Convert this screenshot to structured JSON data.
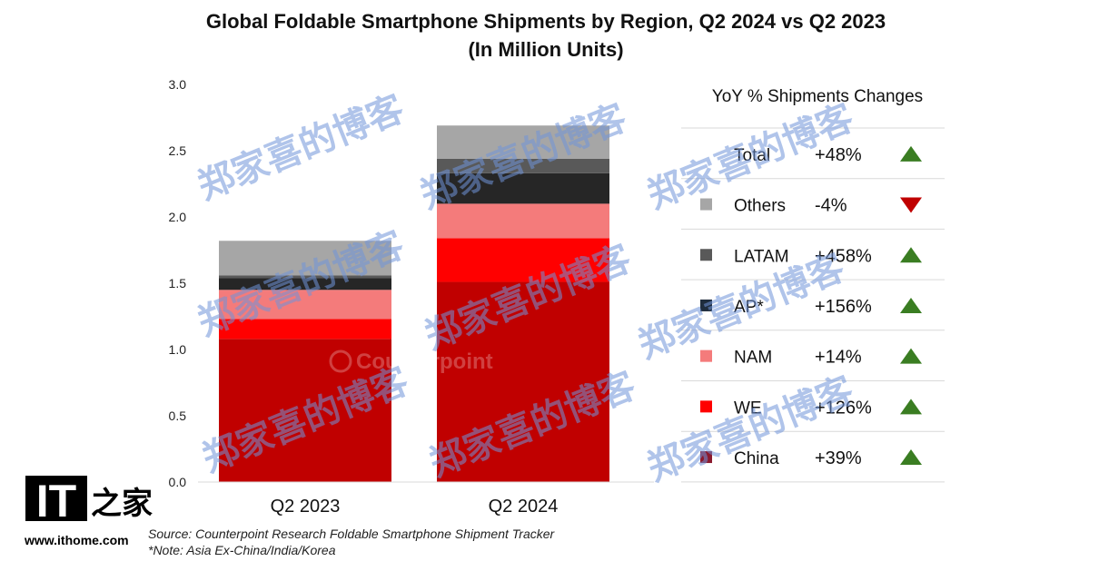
{
  "chart_data": {
    "type": "bar",
    "stacked": true,
    "title": "Global Foldable Smartphone Shipments by Region, Q2 2024 vs Q2 2023",
    "subtitle": "(In Million Units)",
    "categories": [
      "Q2 2023",
      "Q2 2024"
    ],
    "ylim": [
      0,
      3.0
    ],
    "yticks": [
      "0.0",
      "0.5",
      "1.0",
      "1.5",
      "2.0",
      "2.5",
      "3.0"
    ],
    "ytick_values": [
      0,
      0.5,
      1.0,
      1.5,
      2.0,
      2.5,
      3.0
    ],
    "series": [
      {
        "name": "China",
        "values": [
          1.08,
          1.51
        ],
        "color": "#c00000"
      },
      {
        "name": "WE",
        "values": [
          0.15,
          0.33
        ],
        "color": "#ff0000"
      },
      {
        "name": "NAM",
        "values": [
          0.22,
          0.26
        ],
        "color": "#f47b7b"
      },
      {
        "name": "AP*",
        "values": [
          0.09,
          0.23
        ],
        "color": "#262626"
      },
      {
        "name": "LATAM",
        "values": [
          0.02,
          0.11
        ],
        "color": "#595959"
      },
      {
        "name": "Others",
        "values": [
          0.26,
          0.25
        ],
        "color": "#a6a6a6"
      }
    ],
    "legend": {
      "header": "YoY % Shipments Changes",
      "rows": [
        {
          "label": "Total",
          "change": "+48%",
          "direction": "up",
          "swatch": ""
        },
        {
          "label": "Others",
          "change": "-4%",
          "direction": "down",
          "swatch": "#a6a6a6"
        },
        {
          "label": "LATAM",
          "change": "+458%",
          "direction": "up",
          "swatch": "#595959"
        },
        {
          "label": "AP*",
          "change": "+156%",
          "direction": "up",
          "swatch": "#1f2d3d"
        },
        {
          "label": "NAM",
          "change": "+14%",
          "direction": "up",
          "swatch": "#f47b7b"
        },
        {
          "label": "WE",
          "change": "+126%",
          "direction": "up",
          "swatch": "#ff0000"
        },
        {
          "label": "China",
          "change": "+39%",
          "direction": "up",
          "swatch": "#8b1a2e"
        }
      ],
      "up_color": "#3a7d22",
      "down_color": "#c00000"
    },
    "source": "Source: Counterpoint Research Foldable Smartphone Shipment Tracker",
    "note": "*Note: Asia Ex-China/India/Korea"
  },
  "logo": {
    "brand_mark": "IT",
    "brand_cn": "之家",
    "url": "www.ithome.com",
    "counterpoint_text": "Counterpoint"
  },
  "watermark_text": "郑家喜的博客"
}
